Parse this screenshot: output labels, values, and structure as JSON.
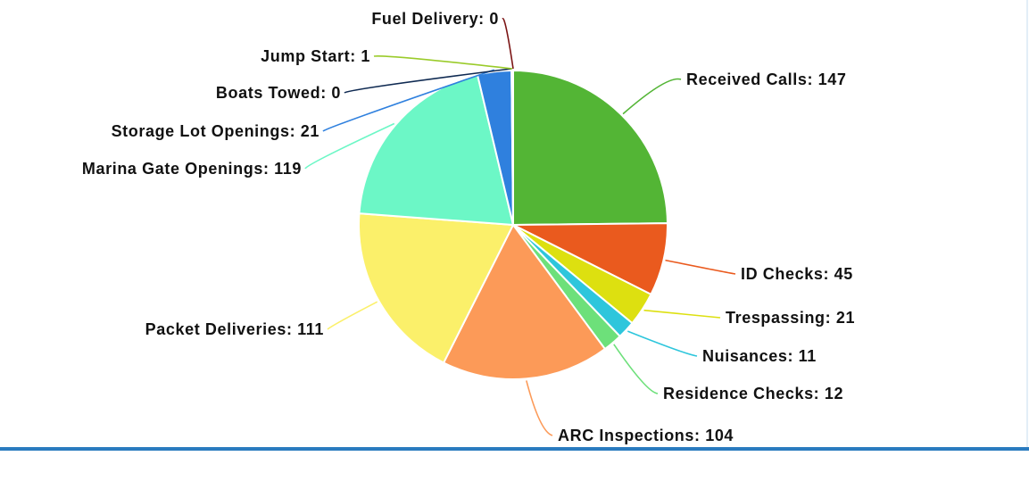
{
  "chart_data": {
    "type": "pie",
    "title": "",
    "slices": [
      {
        "label": "Received Calls",
        "value": 147,
        "color": "#53b535",
        "text": "Received Calls: 147"
      },
      {
        "label": "ID Checks",
        "value": 45,
        "color": "#ea5a1e",
        "text": "ID Checks: 45"
      },
      {
        "label": "Trespassing",
        "value": 21,
        "color": "#dde010",
        "text": "Trespassing: 21"
      },
      {
        "label": "Nuisances",
        "value": 11,
        "color": "#2ec6dc",
        "text": "Nuisances: 11"
      },
      {
        "label": "Residence Checks",
        "value": 12,
        "color": "#6de07a",
        "text": "Residence Checks: 12"
      },
      {
        "label": "ARC Inspections",
        "value": 104,
        "color": "#fc9a58",
        "text": "ARC Inspections: 104"
      },
      {
        "label": "Packet Deliveries",
        "value": 111,
        "color": "#fbf06a",
        "text": "Packet Deliveries: 111"
      },
      {
        "label": "Marina Gate Openings",
        "value": 119,
        "color": "#6cf7c6",
        "text": "Marina Gate Openings: 119"
      },
      {
        "label": "Storage Lot Openings",
        "value": 21,
        "color": "#2f80de",
        "text": "Storage Lot Openings: 21"
      },
      {
        "label": "Boats Towed",
        "value": 0,
        "color": "#0f2a52",
        "text": "Boats Towed: 0"
      },
      {
        "label": "Jump Start",
        "value": 1,
        "color": "#9acb2a",
        "text": "Jump Start: 1"
      },
      {
        "label": "Fuel Delivery",
        "value": 0,
        "color": "#7b1414",
        "text": "Fuel Delivery: 0"
      }
    ],
    "legend": "none"
  },
  "colors": {
    "rule_accent": "#2a7bbf"
  }
}
